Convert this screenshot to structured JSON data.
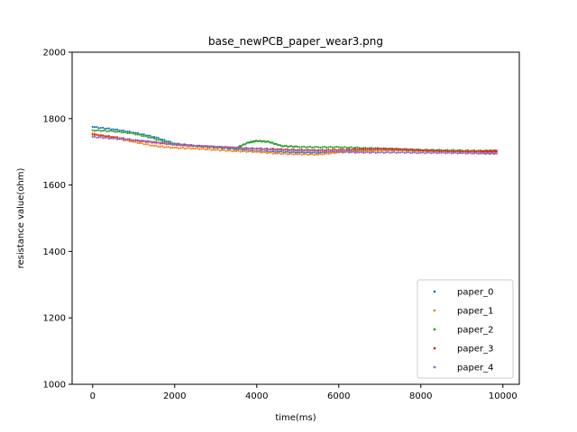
{
  "chart_data": {
    "type": "scatter",
    "title": "base_newPCB_paper_wear3.png",
    "xlabel": "time(ms)",
    "ylabel": "resistance value(ohm)",
    "xlim": [
      -500,
      10400
    ],
    "ylim": [
      1000,
      2000
    ],
    "xticks": [
      0,
      2000,
      4000,
      6000,
      8000,
      10000
    ],
    "yticks": [
      1000,
      1200,
      1400,
      1600,
      1800,
      2000
    ],
    "grid": false,
    "legend": "lower-right",
    "series": [
      {
        "name": "paper_0",
        "color": "#1f77b4",
        "points": [
          [
            0,
            1775
          ],
          [
            500,
            1768
          ],
          [
            1000,
            1758
          ],
          [
            1500,
            1745
          ],
          [
            2000,
            1725
          ],
          [
            2500,
            1718
          ],
          [
            3000,
            1713
          ],
          [
            3500,
            1708
          ],
          [
            4000,
            1702
          ],
          [
            4500,
            1700
          ],
          [
            5000,
            1698
          ],
          [
            5500,
            1697
          ],
          [
            6000,
            1700
          ],
          [
            6500,
            1703
          ],
          [
            7000,
            1705
          ],
          [
            7500,
            1705
          ],
          [
            8000,
            1703
          ],
          [
            8500,
            1702
          ],
          [
            9000,
            1700
          ],
          [
            9500,
            1700
          ],
          [
            9850,
            1700
          ]
        ]
      },
      {
        "name": "paper_1",
        "color": "#ff7f0e",
        "points": [
          [
            0,
            1755
          ],
          [
            500,
            1742
          ],
          [
            1000,
            1730
          ],
          [
            1500,
            1718
          ],
          [
            2000,
            1712
          ],
          [
            2500,
            1710
          ],
          [
            3000,
            1706
          ],
          [
            3500,
            1702
          ],
          [
            4000,
            1700
          ],
          [
            4500,
            1695
          ],
          [
            5000,
            1693
          ],
          [
            5500,
            1692
          ],
          [
            6000,
            1698
          ],
          [
            6500,
            1702
          ],
          [
            7000,
            1705
          ],
          [
            7500,
            1705
          ],
          [
            8000,
            1703
          ],
          [
            8500,
            1702
          ],
          [
            9000,
            1700
          ],
          [
            9500,
            1700
          ],
          [
            9850,
            1700
          ]
        ]
      },
      {
        "name": "paper_2",
        "color": "#2ca02c",
        "points": [
          [
            0,
            1765
          ],
          [
            500,
            1762
          ],
          [
            1000,
            1755
          ],
          [
            1500,
            1740
          ],
          [
            2000,
            1722
          ],
          [
            2500,
            1718
          ],
          [
            3000,
            1715
          ],
          [
            3500,
            1712
          ],
          [
            3800,
            1728
          ],
          [
            4000,
            1733
          ],
          [
            4300,
            1730
          ],
          [
            4600,
            1718
          ],
          [
            5000,
            1715
          ],
          [
            5500,
            1714
          ],
          [
            6000,
            1714
          ],
          [
            6500,
            1712
          ],
          [
            7000,
            1710
          ],
          [
            7500,
            1708
          ],
          [
            8000,
            1706
          ],
          [
            8500,
            1705
          ],
          [
            9000,
            1704
          ],
          [
            9500,
            1703
          ],
          [
            9850,
            1703
          ]
        ]
      },
      {
        "name": "paper_3",
        "color": "#d62728",
        "points": [
          [
            0,
            1752
          ],
          [
            500,
            1745
          ],
          [
            1000,
            1735
          ],
          [
            1500,
            1728
          ],
          [
            2000,
            1722
          ],
          [
            2500,
            1718
          ],
          [
            3000,
            1715
          ],
          [
            3500,
            1712
          ],
          [
            4000,
            1710
          ],
          [
            4500,
            1708
          ],
          [
            5000,
            1706
          ],
          [
            5500,
            1705
          ],
          [
            6000,
            1706
          ],
          [
            6500,
            1708
          ],
          [
            7000,
            1710
          ],
          [
            7500,
            1708
          ],
          [
            8000,
            1705
          ],
          [
            8500,
            1703
          ],
          [
            9000,
            1702
          ],
          [
            9500,
            1702
          ],
          [
            9850,
            1703
          ]
        ]
      },
      {
        "name": "paper_4",
        "color": "#9467bd",
        "points": [
          [
            0,
            1745
          ],
          [
            500,
            1740
          ],
          [
            1000,
            1735
          ],
          [
            1500,
            1730
          ],
          [
            2000,
            1722
          ],
          [
            2500,
            1718
          ],
          [
            3000,
            1715
          ],
          [
            3500,
            1712
          ],
          [
            4000,
            1708
          ],
          [
            4500,
            1705
          ],
          [
            5000,
            1703
          ],
          [
            5500,
            1702
          ],
          [
            6000,
            1700
          ],
          [
            6500,
            1698
          ],
          [
            7000,
            1698
          ],
          [
            7500,
            1698
          ],
          [
            8000,
            1697
          ],
          [
            8500,
            1697
          ],
          [
            9000,
            1696
          ],
          [
            9500,
            1695
          ],
          [
            9850,
            1695
          ]
        ]
      }
    ]
  }
}
